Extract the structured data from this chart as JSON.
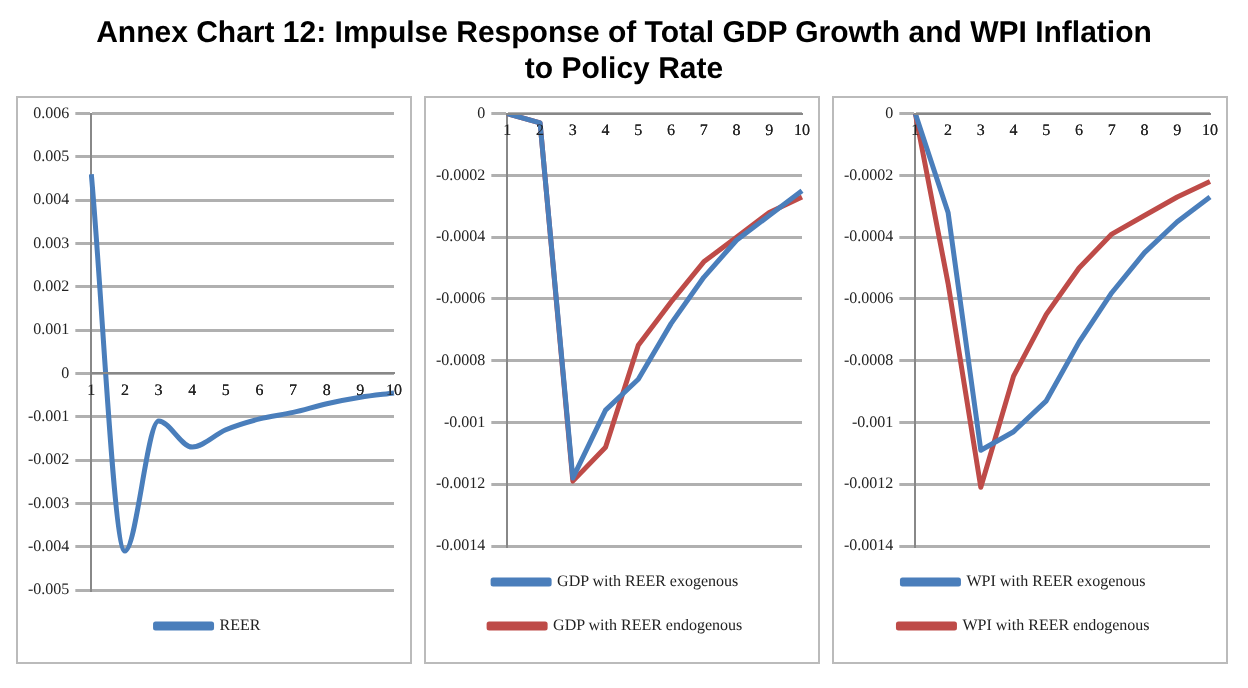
{
  "chart_data": [
    {
      "type": "line",
      "title": "Annex Chart 12: Impulse Response of Total GDP Growth and WPI Inflation to Policy Rate",
      "categories": [
        "1",
        "2",
        "3",
        "4",
        "5",
        "6",
        "7",
        "8",
        "9",
        "10"
      ],
      "series": [
        {
          "name": "REER",
          "color": "#4a7ebb",
          "values": [
            0.0046,
            -0.0041,
            -0.0011,
            -0.0017,
            -0.0013,
            -0.00105,
            -0.0009,
            -0.0007,
            -0.00055,
            -0.00045
          ]
        }
      ],
      "ylim": [
        -0.005,
        0.006
      ],
      "yticks": [
        -0.005,
        -0.004,
        -0.003,
        -0.002,
        -0.001,
        0,
        0.001,
        0.002,
        0.003,
        0.004,
        0.005,
        0.006
      ],
      "grid": "y",
      "legend": "bottom",
      "marker": "none"
    },
    {
      "type": "line",
      "categories": [
        "1",
        "2",
        "3",
        "4",
        "5",
        "6",
        "7",
        "8",
        "9",
        "10"
      ],
      "series": [
        {
          "name": "GDP with REER exogenous",
          "color": "#4a7ebb",
          "values": [
            0,
            -3e-05,
            -0.00118,
            -0.00096,
            -0.00086,
            -0.00068,
            -0.00053,
            -0.00041,
            -0.00033,
            -0.00025
          ]
        },
        {
          "name": "GDP with REER endogenous",
          "color": "#be4b48",
          "values": [
            0,
            -3e-05,
            -0.00119,
            -0.00108,
            -0.00075,
            -0.00061,
            -0.00048,
            -0.0004,
            -0.00032,
            -0.00027
          ]
        }
      ],
      "ylim": [
        -0.0014,
        0
      ],
      "yticks": [
        -0.0014,
        -0.0012,
        -0.001,
        -0.0008,
        -0.0006,
        -0.0004,
        -0.0002,
        0
      ],
      "grid": "y",
      "legend": "bottom",
      "marker": "none"
    },
    {
      "type": "line",
      "categories": [
        "1",
        "2",
        "3",
        "4",
        "5",
        "6",
        "7",
        "8",
        "9",
        "10"
      ],
      "series": [
        {
          "name": "WPI with REER exogenous",
          "color": "#4a7ebb",
          "values": [
            0,
            -0.00032,
            -0.00109,
            -0.00103,
            -0.00093,
            -0.00074,
            -0.00058,
            -0.00045,
            -0.00035,
            -0.00027
          ]
        },
        {
          "name": "WPI with REER endogenous",
          "color": "#be4b48",
          "values": [
            0,
            -0.00055,
            -0.00121,
            -0.00085,
            -0.00065,
            -0.0005,
            -0.00039,
            -0.00033,
            -0.00027,
            -0.00022
          ]
        }
      ],
      "ylim": [
        -0.0014,
        0
      ],
      "yticks": [
        -0.0014,
        -0.0012,
        -0.001,
        -0.0008,
        -0.0006,
        -0.0004,
        -0.0002,
        0
      ],
      "grid": "y",
      "legend": "bottom",
      "marker": "none"
    }
  ]
}
